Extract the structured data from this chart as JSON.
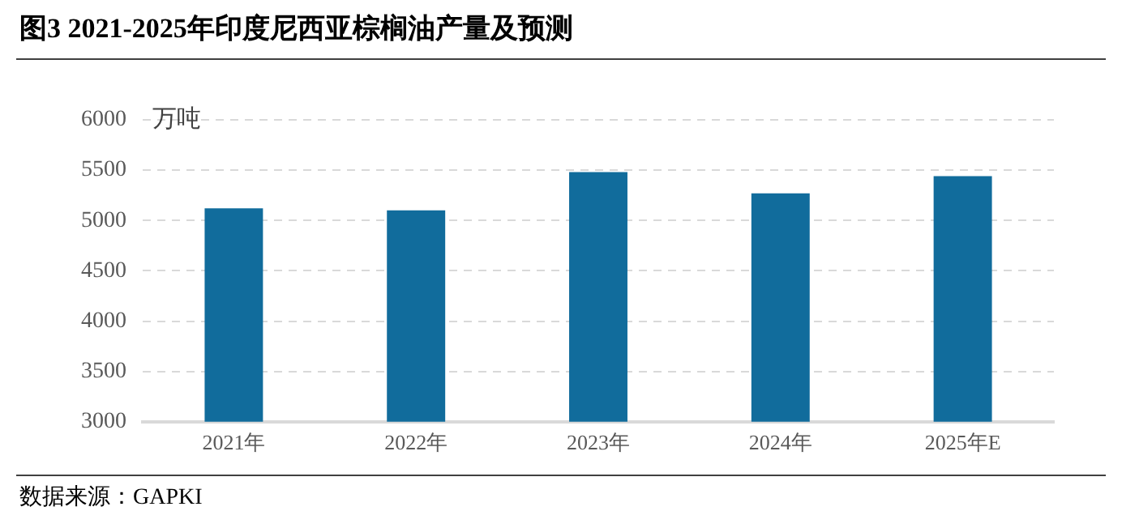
{
  "chart_data": {
    "type": "bar",
    "title": "图3 2021-2025年印度尼西亚棕榈油产量及预测",
    "ylabel": "万吨",
    "categories": [
      "2021年",
      "2022年",
      "2023年",
      "2024年",
      "2025年E"
    ],
    "values": [
      5120,
      5100,
      5480,
      5270,
      5440
    ],
    "colors": [
      "#116c9c",
      "#116c9c",
      "#116c9c",
      "#116c9c",
      "#116c9c"
    ],
    "ylim": [
      3000,
      6000
    ],
    "yticks": [
      3000,
      3500,
      4000,
      4500,
      5000,
      5500,
      6000
    ],
    "grid": "y",
    "legend": false,
    "annotations": [
      "数据来源：GAPKI"
    ]
  }
}
